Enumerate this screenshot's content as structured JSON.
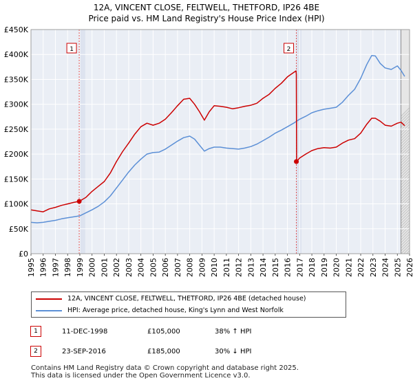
{
  "title": "12A, VINCENT CLOSE, FELTWELL, THETFORD, IP26 4BE",
  "subtitle": "Price paid vs. HM Land Registry's House Price Index (HPI)",
  "chart_data": {
    "type": "line",
    "xlim": [
      1995,
      2026
    ],
    "ylim": [
      0,
      450000
    ],
    "yticks": [
      {
        "value": 0,
        "label": "£0"
      },
      {
        "value": 50000,
        "label": "£50K"
      },
      {
        "value": 100000,
        "label": "£100K"
      },
      {
        "value": 150000,
        "label": "£150K"
      },
      {
        "value": 200000,
        "label": "£200K"
      },
      {
        "value": 250000,
        "label": "£250K"
      },
      {
        "value": 300000,
        "label": "£300K"
      },
      {
        "value": 350000,
        "label": "£350K"
      },
      {
        "value": 400000,
        "label": "£400K"
      },
      {
        "value": 450000,
        "label": "£450K"
      }
    ],
    "xticks": [
      "1995",
      "1996",
      "1997",
      "1998",
      "1999",
      "2000",
      "2001",
      "2002",
      "2003",
      "2004",
      "2005",
      "2006",
      "2007",
      "2008",
      "2009",
      "2010",
      "2011",
      "2012",
      "2013",
      "2014",
      "2015",
      "2016",
      "2017",
      "2018",
      "2019",
      "2020",
      "2021",
      "2022",
      "2023",
      "2024",
      "2025",
      "2026"
    ],
    "grid": true,
    "series": [
      {
        "name": "12A, VINCENT CLOSE, FELTWELL, THETFORD, IP26 4BE (detached house)",
        "color": "#cc0000",
        "x": [
          1995.0,
          1995.5,
          1996.0,
          1996.5,
          1997.0,
          1997.5,
          1998.0,
          1998.5,
          1998.95,
          1999.5,
          2000.0,
          2000.5,
          2001.0,
          2001.5,
          2002.0,
          2002.5,
          2003.0,
          2003.5,
          2004.0,
          2004.5,
          2005.0,
          2005.5,
          2006.0,
          2006.5,
          2007.0,
          2007.5,
          2008.0,
          2008.4,
          2008.8,
          2009.2,
          2009.6,
          2010.0,
          2010.5,
          2011.0,
          2011.5,
          2012.0,
          2012.5,
          2013.0,
          2013.5,
          2014.0,
          2014.5,
          2015.0,
          2015.5,
          2016.0,
          2016.4,
          2016.7,
          2016.73,
          2016.75,
          2017.0,
          2017.5,
          2018.0,
          2018.5,
          2019.0,
          2019.5,
          2020.0,
          2020.5,
          2021.0,
          2021.5,
          2022.0,
          2022.5,
          2022.9,
          2023.2,
          2023.6,
          2024.0,
          2024.5,
          2025.0,
          2025.3,
          2025.6
        ],
        "values": [
          88000,
          86000,
          84000,
          90000,
          93000,
          97000,
          100000,
          103000,
          105000,
          113000,
          125000,
          135000,
          145000,
          162000,
          185000,
          205000,
          222000,
          240000,
          255000,
          262000,
          258000,
          262000,
          270000,
          283000,
          297000,
          310000,
          312000,
          300000,
          285000,
          268000,
          285000,
          297000,
          296000,
          294000,
          291000,
          293000,
          296000,
          298000,
          302000,
          312000,
          320000,
          332000,
          342000,
          355000,
          362000,
          367000,
          360000,
          185000,
          192000,
          200000,
          207000,
          211000,
          213000,
          212000,
          214000,
          222000,
          228000,
          231000,
          242000,
          260000,
          272000,
          272000,
          266000,
          258000,
          256000,
          262000,
          264000,
          257000
        ]
      },
      {
        "name": "HPI: Average price, detached house, King's Lynn and West Norfolk",
        "color": "#5b8fd6",
        "x": [
          1995.0,
          1995.5,
          1996.0,
          1996.5,
          1997.0,
          1997.5,
          1998.0,
          1998.5,
          1999.0,
          1999.5,
          2000.0,
          2000.5,
          2001.0,
          2001.5,
          2002.0,
          2002.5,
          2003.0,
          2003.5,
          2004.0,
          2004.5,
          2005.0,
          2005.5,
          2006.0,
          2006.5,
          2007.0,
          2007.5,
          2008.0,
          2008.4,
          2008.8,
          2009.2,
          2009.6,
          2010.0,
          2010.5,
          2011.0,
          2011.5,
          2012.0,
          2012.5,
          2013.0,
          2013.5,
          2014.0,
          2014.5,
          2015.0,
          2015.5,
          2016.0,
          2016.5,
          2017.0,
          2017.5,
          2018.0,
          2018.5,
          2019.0,
          2019.5,
          2020.0,
          2020.5,
          2021.0,
          2021.5,
          2022.0,
          2022.5,
          2022.9,
          2023.2,
          2023.6,
          2024.0,
          2024.5,
          2025.0,
          2025.3,
          2025.6
        ],
        "values": [
          63000,
          62000,
          63000,
          65000,
          67000,
          70000,
          72000,
          74000,
          76000,
          82000,
          88000,
          95000,
          104000,
          116000,
          132000,
          148000,
          164000,
          178000,
          190000,
          200000,
          203000,
          204000,
          210000,
          218000,
          226000,
          233000,
          236000,
          230000,
          218000,
          206000,
          211000,
          214000,
          214000,
          212000,
          211000,
          210000,
          212000,
          215000,
          220000,
          227000,
          234000,
          242000,
          248000,
          255000,
          262000,
          270000,
          276000,
          283000,
          287000,
          290000,
          292000,
          294000,
          304000,
          318000,
          330000,
          352000,
          380000,
          398000,
          397000,
          382000,
          373000,
          370000,
          377000,
          368000,
          356000
        ]
      }
    ],
    "sales": [
      {
        "label": "1",
        "x": 1998.95,
        "value": 105000,
        "date": "11-DEC-1998",
        "price": "£105,000",
        "hpi": "38% ↑ HPI"
      },
      {
        "label": "2",
        "x": 2016.73,
        "value": 185000,
        "date": "23-SEP-2016",
        "price": "£185,000",
        "hpi": "30% ↓ HPI"
      }
    ]
  },
  "footer": {
    "line1": "Contains HM Land Registry data © Crown copyright and database right 2025.",
    "line2": "This data is licensed under the Open Government Licence v3.0."
  }
}
